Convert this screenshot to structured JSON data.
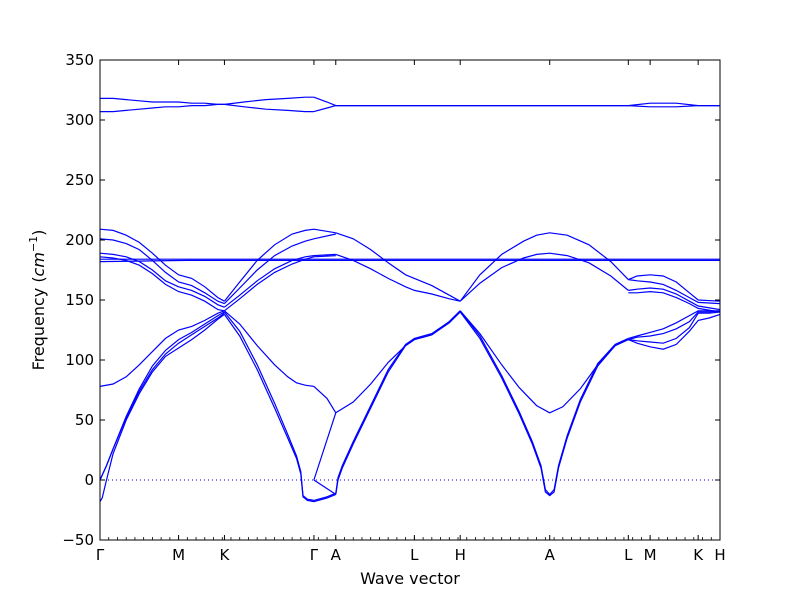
{
  "chart_data": {
    "type": "line",
    "title": "",
    "xlabel": "Wave vector",
    "ylabel_prefix": "Frequency (",
    "ylabel_unit_main": "cm",
    "ylabel_unit_exp": "−1",
    "ylabel_suffix": ")",
    "ylim": [
      -50,
      350
    ],
    "yticks": [
      -50,
      0,
      50,
      100,
      150,
      200,
      250,
      300,
      350
    ],
    "xlim": [
      0,
      14.2
    ],
    "grid": false,
    "legend": "none",
    "line_color": "#0000ff",
    "zero_line": {
      "y": 0,
      "style": "dotted",
      "color": "#0000ff"
    },
    "high_symmetry_points": [
      {
        "label": "Γ",
        "x": 0
      },
      {
        "label": "M",
        "x": 1.8
      },
      {
        "label": "K",
        "x": 2.85
      },
      {
        "label": "Γ",
        "x": 4.9
      },
      {
        "label": "A",
        "x": 5.4
      },
      {
        "label": "L",
        "x": 7.2
      },
      {
        "label": "H",
        "x": 8.25
      },
      {
        "label": "A",
        "x": 10.3
      },
      {
        "label": "L",
        "x": 12.1
      },
      {
        "label": "M",
        "x": 12.6
      },
      {
        "label": "K",
        "x": 13.7
      },
      {
        "label": "H",
        "x": 14.2
      }
    ],
    "series": [
      {
        "x": [
          0,
          0.3,
          0.6,
          0.9,
          1.2,
          1.5,
          1.8,
          2.1,
          2.4,
          2.7,
          2.85
        ],
        "values": [
          318,
          318,
          317,
          316,
          315,
          315,
          315,
          314,
          314,
          313,
          313
        ]
      },
      {
        "x": [
          0,
          0.3,
          0.6,
          0.9,
          1.2,
          1.5,
          1.8,
          2.1,
          2.4,
          2.7,
          2.85
        ],
        "values": [
          307,
          307,
          308,
          309,
          310,
          311,
          311,
          312,
          312,
          313,
          313
        ]
      },
      {
        "x": [
          2.85,
          3.3,
          3.8,
          4.3,
          4.7,
          4.9
        ],
        "values": [
          313,
          315,
          317,
          318,
          319,
          319
        ]
      },
      {
        "x": [
          2.85,
          3.3,
          3.8,
          4.3,
          4.7,
          4.9
        ],
        "values": [
          313,
          311,
          309,
          308,
          307,
          307
        ]
      },
      {
        "x": [
          4.9,
          5.2,
          5.4,
          7.0,
          9.0,
          11.0,
          12.1,
          12.6,
          13.2,
          13.7,
          14.2
        ],
        "values": [
          319,
          315,
          312,
          312,
          312,
          312,
          312,
          314,
          314,
          312,
          312
        ]
      },
      {
        "x": [
          4.9,
          5.2,
          5.4,
          7.0,
          9.0,
          11.0,
          12.1,
          12.6,
          13.2,
          13.7,
          14.2
        ],
        "values": [
          307,
          310,
          312,
          312,
          312,
          312,
          312,
          311,
          311,
          312,
          312
        ]
      },
      {
        "x": [
          0,
          0.3,
          0.6,
          0.9,
          1.2,
          1.5,
          1.8,
          2.1,
          2.4,
          2.7,
          2.85
        ],
        "values": [
          209,
          208,
          204,
          198,
          189,
          179,
          171,
          168,
          161,
          152,
          149
        ]
      },
      {
        "x": [
          0,
          0.3,
          0.6,
          0.9,
          1.2,
          1.5,
          1.8,
          2.1,
          2.4,
          2.7,
          2.85
        ],
        "values": [
          201,
          200,
          197,
          192,
          183,
          173,
          165,
          162,
          156,
          149,
          147
        ]
      },
      {
        "x": [
          0,
          0.3,
          0.6,
          0.9,
          1.2,
          1.5,
          1.8,
          2.1,
          2.4,
          2.7,
          2.85
        ],
        "values": [
          189,
          188,
          186,
          182,
          175,
          166,
          161,
          158,
          153,
          146,
          144
        ]
      },
      {
        "x": [
          0,
          0.3,
          0.6,
          0.9,
          1.2,
          1.5,
          1.8,
          2.1,
          2.4,
          2.7,
          2.85
        ],
        "values": [
          186,
          185,
          183,
          179,
          172,
          163,
          157,
          154,
          149,
          142,
          141
        ]
      },
      {
        "x": [
          2.85,
          3.2,
          3.6,
          4.0,
          4.4,
          4.7,
          4.9,
          5.4
        ],
        "values": [
          149,
          165,
          183,
          196,
          205,
          208,
          209,
          206
        ]
      },
      {
        "x": [
          2.85,
          3.2,
          3.6,
          4.0,
          4.4,
          4.7,
          4.9,
          5.4
        ],
        "values": [
          147,
          160,
          175,
          187,
          195,
          199,
          201,
          205
        ]
      },
      {
        "x": [
          2.85,
          3.2,
          3.6,
          4.0,
          4.4,
          4.7,
          4.9,
          5.4
        ],
        "values": [
          144,
          154,
          166,
          176,
          183,
          186,
          187,
          188
        ]
      },
      {
        "x": [
          2.85,
          3.2,
          3.6,
          4.0,
          4.4,
          4.7,
          4.9,
          5.4
        ],
        "values": [
          141,
          151,
          163,
          173,
          180,
          184,
          186,
          187
        ]
      },
      {
        "x": [
          0,
          2.0,
          4.0,
          4.9,
          5.4,
          7.2,
          8.0,
          10.3,
          12.1,
          12.6,
          13.7,
          14.2
        ],
        "values": [
          184,
          184,
          184,
          184,
          184,
          184,
          184,
          184,
          184,
          184,
          184,
          184
        ]
      },
      {
        "x": [
          0,
          2.0,
          4.0,
          4.9,
          5.4,
          7.2,
          8.0,
          10.3,
          12.1,
          12.6,
          13.7,
          14.2
        ],
        "values": [
          182,
          183,
          183,
          183,
          183,
          183,
          183,
          183,
          183,
          183,
          183,
          183
        ]
      },
      {
        "x": [
          5.4,
          5.8,
          6.2,
          6.6,
          7.0,
          7.2,
          7.6,
          8.0,
          8.25
        ],
        "values": [
          206,
          201,
          192,
          181,
          171,
          168,
          162,
          154,
          149
        ]
      },
      {
        "x": [
          5.4,
          5.8,
          6.2,
          6.6,
          7.0,
          7.2,
          7.6,
          8.0,
          8.25
        ],
        "values": [
          188,
          183,
          176,
          168,
          161,
          158,
          155,
          151,
          149
        ]
      },
      {
        "x": [
          8.25,
          8.7,
          9.2,
          9.7,
          10.0,
          10.3,
          10.7,
          11.2,
          11.7,
          12.1
        ],
        "values": [
          149,
          171,
          188,
          199,
          204,
          206,
          204,
          196,
          182,
          167
        ]
      },
      {
        "x": [
          8.25,
          8.7,
          9.2,
          9.7,
          10.0,
          10.3,
          10.7,
          11.2,
          11.7,
          12.1
        ],
        "values": [
          149,
          164,
          177,
          185,
          188,
          189,
          187,
          181,
          170,
          158
        ]
      },
      {
        "x": [
          12.1,
          12.3,
          12.6,
          12.9,
          13.2,
          13.5,
          13.7,
          14.2
        ],
        "values": [
          167,
          170,
          171,
          170,
          165,
          156,
          150,
          149
        ]
      },
      {
        "x": [
          12.1,
          12.3,
          12.6,
          12.9,
          13.2,
          13.5,
          13.7,
          14.2
        ],
        "values": [
          167,
          166,
          165,
          163,
          158,
          152,
          148,
          147
        ]
      },
      {
        "x": [
          12.1,
          12.3,
          12.6,
          12.9,
          13.2,
          13.5,
          13.7,
          14.2
        ],
        "values": [
          158,
          159,
          160,
          159,
          155,
          149,
          145,
          142
        ]
      },
      {
        "x": [
          12.1,
          12.3,
          12.6,
          12.9,
          13.2,
          13.5,
          13.7,
          14.2
        ],
        "values": [
          156,
          156,
          157,
          156,
          152,
          147,
          143,
          140
        ]
      },
      {
        "x": [
          0,
          0.05,
          0.15,
          0.3,
          0.6,
          0.9,
          1.2,
          1.5,
          1.8,
          2.1,
          2.4,
          2.7,
          2.85
        ],
        "values": [
          -18,
          -15,
          0,
          22,
          50,
          72,
          90,
          103,
          110,
          117,
          125,
          134,
          138
        ]
      },
      {
        "x": [
          0,
          0.15,
          0.3,
          0.6,
          0.9,
          1.2,
          1.5,
          1.8,
          2.1,
          2.4,
          2.7,
          2.85
        ],
        "values": [
          0,
          12,
          26,
          52,
          74,
          92,
          105,
          114,
          121,
          128,
          135,
          139
        ]
      },
      {
        "x": [
          0,
          0.15,
          0.3,
          0.6,
          0.9,
          1.2,
          1.5,
          1.8,
          2.1,
          2.4,
          2.7,
          2.85
        ],
        "values": [
          0,
          12,
          26,
          53,
          76,
          95,
          108,
          117,
          123,
          130,
          137,
          140
        ]
      },
      {
        "x": [
          0,
          0.3,
          0.6,
          0.9,
          1.2,
          1.5,
          1.8,
          2.1,
          2.4,
          2.7,
          2.85
        ],
        "values": [
          78,
          80,
          86,
          96,
          107,
          118,
          125,
          128,
          133,
          139,
          141
        ]
      },
      {
        "x": [
          2.85,
          3.2,
          3.6,
          4.0,
          4.3,
          4.5,
          4.6,
          4.65,
          4.75,
          4.9,
          5.2,
          5.4
        ],
        "values": [
          138,
          120,
          92,
          60,
          35,
          18,
          5,
          -14,
          -17,
          -18,
          -15,
          -12
        ]
      },
      {
        "x": [
          2.85,
          3.2,
          3.6,
          4.0,
          4.3,
          4.5,
          4.6,
          4.65,
          4.75,
          4.9,
          5.2,
          5.4
        ],
        "values": [
          140,
          124,
          96,
          64,
          38,
          20,
          7,
          -13,
          -16,
          -17,
          -14,
          -11
        ]
      },
      {
        "x": [
          2.85,
          3.2,
          3.6,
          4.0,
          4.3,
          4.5,
          4.7,
          4.9,
          5.2,
          5.4
        ],
        "values": [
          141,
          130,
          112,
          96,
          86,
          81,
          79,
          78,
          68,
          56
        ]
      },
      {
        "x": [
          4.9,
          5.4
        ],
        "values": [
          0,
          56
        ]
      },
      {
        "x": [
          4.9,
          5.4
        ],
        "values": [
          0,
          -12
        ]
      },
      {
        "x": [
          5.4,
          5.45,
          5.55,
          5.8,
          6.2,
          6.6,
          7.0,
          7.2,
          7.6,
          8.0,
          8.25
        ],
        "values": [
          -12,
          0,
          10,
          30,
          60,
          90,
          112,
          117,
          121,
          131,
          140
        ]
      },
      {
        "x": [
          5.4,
          5.45,
          5.55,
          5.8,
          6.2,
          6.6,
          7.0,
          7.2,
          7.6,
          8.0,
          8.25
        ],
        "values": [
          -11,
          2,
          12,
          32,
          62,
          92,
          113,
          118,
          122,
          132,
          141
        ]
      },
      {
        "x": [
          5.4,
          5.8,
          6.2,
          6.6,
          7.0,
          7.2,
          7.6,
          8.0,
          8.25
        ],
        "values": [
          56,
          65,
          80,
          98,
          112,
          117,
          121,
          132,
          141
        ]
      },
      {
        "x": [
          8.25,
          8.7,
          9.2,
          9.6,
          9.9,
          10.1,
          10.2,
          10.3,
          10.4,
          10.5,
          10.7,
          11.0,
          11.4,
          11.8,
          12.1
        ],
        "values": [
          140,
          118,
          85,
          55,
          30,
          10,
          -10,
          -13,
          -10,
          10,
          35,
          65,
          95,
          112,
          117
        ]
      },
      {
        "x": [
          8.25,
          8.7,
          9.2,
          9.6,
          9.9,
          10.1,
          10.2,
          10.3,
          10.4,
          10.5,
          10.7,
          11.0,
          11.4,
          11.8,
          12.1
        ],
        "values": [
          141,
          120,
          87,
          57,
          32,
          12,
          -8,
          -12,
          -8,
          12,
          37,
          67,
          97,
          113,
          118
        ]
      },
      {
        "x": [
          8.25,
          8.7,
          9.2,
          9.6,
          10.0,
          10.3,
          10.6,
          11.0,
          11.4,
          11.8,
          12.1
        ],
        "values": [
          141,
          122,
          96,
          77,
          62,
          56,
          61,
          76,
          96,
          112,
          117
        ]
      },
      {
        "x": [
          12.1,
          12.3,
          12.6,
          12.9,
          13.2,
          13.5,
          13.7,
          13.95,
          14.2
        ],
        "values": [
          117,
          119,
          120,
          122,
          126,
          132,
          140,
          140,
          141
        ]
      },
      {
        "x": [
          12.1,
          12.3,
          12.6,
          12.9,
          13.2,
          13.5,
          13.7,
          13.95,
          14.2
        ],
        "values": [
          117,
          116,
          115,
          114,
          118,
          127,
          139,
          139,
          140
        ]
      },
      {
        "x": [
          12.1,
          12.3,
          12.6,
          12.9,
          13.2,
          13.5,
          13.7,
          13.95,
          14.2
        ],
        "values": [
          117,
          114,
          111,
          109,
          113,
          124,
          133,
          135,
          138
        ]
      },
      {
        "x": [
          12.1,
          12.3,
          12.6,
          12.9,
          13.2,
          13.5,
          13.7,
          13.95,
          14.2
        ],
        "values": [
          118,
          120,
          123,
          126,
          131,
          137,
          141,
          141,
          141
        ]
      }
    ]
  }
}
